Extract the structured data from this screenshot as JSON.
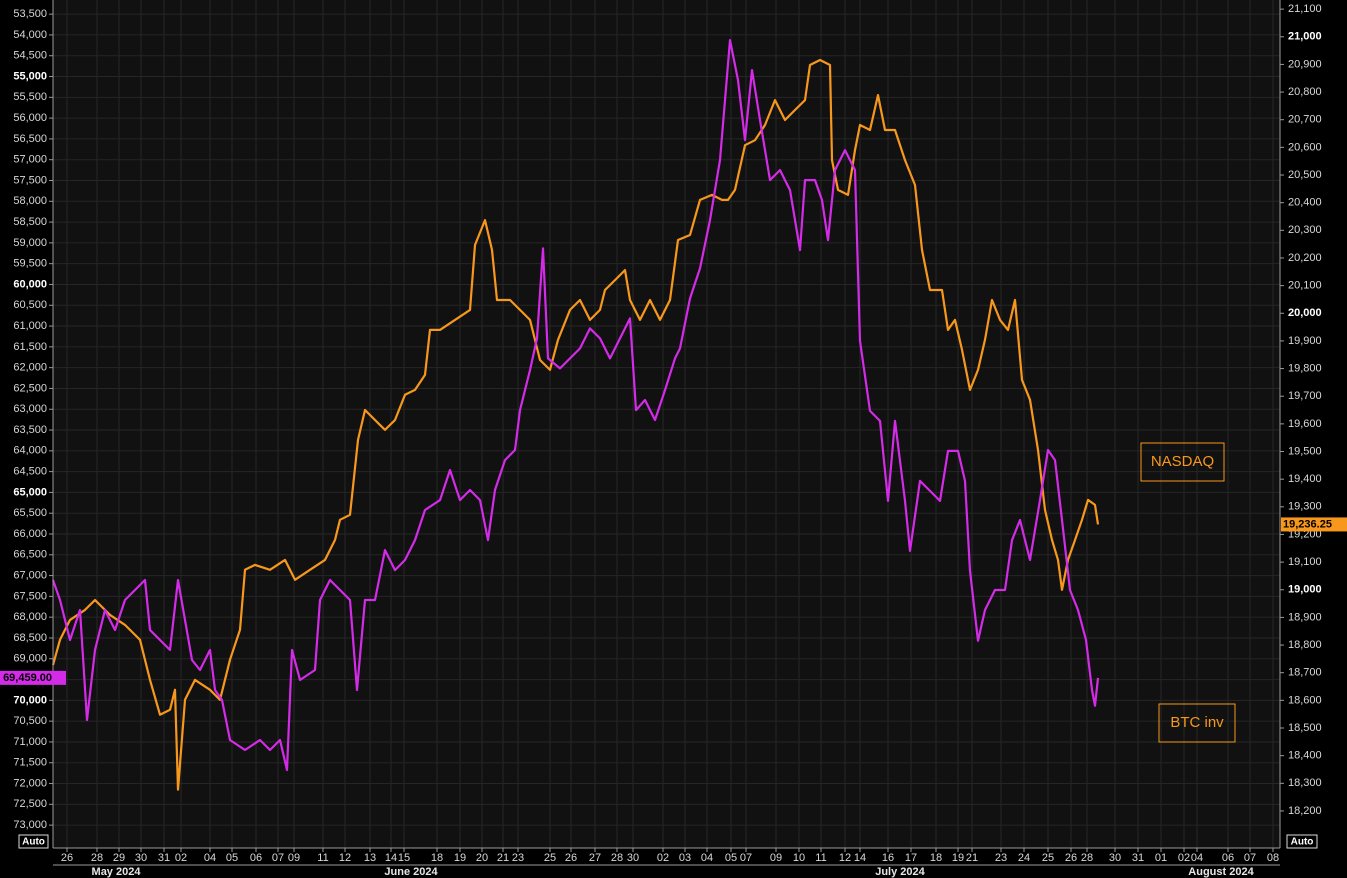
{
  "chart_data": {
    "type": "line",
    "xlim": [
      0,
      122.7
    ],
    "ylim": [
      73550,
      53160
    ],
    "y2lim": [
      18066,
      21133
    ],
    "grid": true,
    "xticks": [
      {
        "value": 1.4,
        "label": "26"
      },
      {
        "value": 4.4,
        "label": "28"
      },
      {
        "value": 6.6,
        "label": "29"
      },
      {
        "value": 8.8,
        "label": "30"
      },
      {
        "value": 11.1,
        "label": "31"
      },
      {
        "value": 12.8,
        "label": "02"
      },
      {
        "value": 15.7,
        "label": "04"
      },
      {
        "value": 17.9,
        "label": "05"
      },
      {
        "value": 20.3,
        "label": "06"
      },
      {
        "value": 22.5,
        "label": "07"
      },
      {
        "value": 24.1,
        "label": "09"
      },
      {
        "value": 27.0,
        "label": "11"
      },
      {
        "value": 29.2,
        "label": "12"
      },
      {
        "value": 31.7,
        "label": "13"
      },
      {
        "value": 33.8,
        "label": "14"
      },
      {
        "value": 35.1,
        "label": "15"
      },
      {
        "value": 38.4,
        "label": "18"
      },
      {
        "value": 40.7,
        "label": "19"
      },
      {
        "value": 42.9,
        "label": "20"
      },
      {
        "value": 45.0,
        "label": "21"
      },
      {
        "value": 46.5,
        "label": "23"
      },
      {
        "value": 49.7,
        "label": "25"
      },
      {
        "value": 51.8,
        "label": "26"
      },
      {
        "value": 54.2,
        "label": "27"
      },
      {
        "value": 56.4,
        "label": "28"
      },
      {
        "value": 58.0,
        "label": "30"
      },
      {
        "value": 61.0,
        "label": "02"
      },
      {
        "value": 63.2,
        "label": "03"
      },
      {
        "value": 65.4,
        "label": "04"
      },
      {
        "value": 67.8,
        "label": "05"
      },
      {
        "value": 69.3,
        "label": "07"
      },
      {
        "value": 72.3,
        "label": "09"
      },
      {
        "value": 74.6,
        "label": "10"
      },
      {
        "value": 76.8,
        "label": "11"
      },
      {
        "value": 79.2,
        "label": "12"
      },
      {
        "value": 80.7,
        "label": "14"
      },
      {
        "value": 83.5,
        "label": "16"
      },
      {
        "value": 85.8,
        "label": "17"
      },
      {
        "value": 88.3,
        "label": "18"
      },
      {
        "value": 90.5,
        "label": "19"
      },
      {
        "value": 91.9,
        "label": "21"
      },
      {
        "value": 94.8,
        "label": "23"
      },
      {
        "value": 97.1,
        "label": "24"
      },
      {
        "value": 99.5,
        "label": "25"
      },
      {
        "value": 101.8,
        "label": "26"
      },
      {
        "value": 103.4,
        "label": "28"
      },
      {
        "value": 106.2,
        "label": "30"
      },
      {
        "value": 108.5,
        "label": "31"
      },
      {
        "value": 110.8,
        "label": "01"
      },
      {
        "value": 113.1,
        "label": "02"
      },
      {
        "value": 114.4,
        "label": "04"
      },
      {
        "value": 117.5,
        "label": "06"
      },
      {
        "value": 119.7,
        "label": "07"
      },
      {
        "value": 122.0,
        "label": "08"
      }
    ],
    "month_ticks": [
      {
        "value": 6.3,
        "label": "May 2024"
      },
      {
        "value": 35.8,
        "label": "June 2024"
      },
      {
        "value": 84.7,
        "label": "July 2024"
      },
      {
        "value": 116.8,
        "label": "August 2024"
      }
    ],
    "yticks": [
      {
        "value": 53500,
        "label": "53,500"
      },
      {
        "value": 54000,
        "label": "54,000"
      },
      {
        "value": 54500,
        "label": "54,500"
      },
      {
        "value": 55000,
        "label": "55,000"
      },
      {
        "value": 55500,
        "label": "55,500"
      },
      {
        "value": 56000,
        "label": "56,000"
      },
      {
        "value": 56500,
        "label": "56,500"
      },
      {
        "value": 57000,
        "label": "57,000"
      },
      {
        "value": 57500,
        "label": "57,500"
      },
      {
        "value": 58000,
        "label": "58,000"
      },
      {
        "value": 58500,
        "label": "58,500"
      },
      {
        "value": 59000,
        "label": "59,000"
      },
      {
        "value": 59500,
        "label": "59,500"
      },
      {
        "value": 60000,
        "label": "60,000"
      },
      {
        "value": 60500,
        "label": "60,500"
      },
      {
        "value": 61000,
        "label": "61,000"
      },
      {
        "value": 61500,
        "label": "61,500"
      },
      {
        "value": 62000,
        "label": "62,000"
      },
      {
        "value": 62500,
        "label": "62,500"
      },
      {
        "value": 63000,
        "label": "63,000"
      },
      {
        "value": 63500,
        "label": "63,500"
      },
      {
        "value": 64000,
        "label": "64,000"
      },
      {
        "value": 64500,
        "label": "64,500"
      },
      {
        "value": 65000,
        "label": "65,000"
      },
      {
        "value": 65500,
        "label": "65,500"
      },
      {
        "value": 66000,
        "label": "66,000"
      },
      {
        "value": 66500,
        "label": "66,500"
      },
      {
        "value": 67000,
        "label": "67,000"
      },
      {
        "value": 67500,
        "label": "67,500"
      },
      {
        "value": 68000,
        "label": "68,000"
      },
      {
        "value": 68500,
        "label": "68,500"
      },
      {
        "value": 69000,
        "label": "69,000"
      },
      {
        "value": 69500,
        "label": "69,500"
      },
      {
        "value": 70000,
        "label": "70,000"
      },
      {
        "value": 70500,
        "label": "70,500"
      },
      {
        "value": 71000,
        "label": "71,000"
      },
      {
        "value": 71500,
        "label": "71,500"
      },
      {
        "value": 72000,
        "label": "72,000"
      },
      {
        "value": 72500,
        "label": "72,500"
      },
      {
        "value": 73000,
        "label": "73,000"
      }
    ],
    "y2ticks": [
      {
        "value": 21100,
        "label": "21,100"
      },
      {
        "value": 21000,
        "label": "21,000"
      },
      {
        "value": 20900,
        "label": "20,900"
      },
      {
        "value": 20800,
        "label": "20,800"
      },
      {
        "value": 20700,
        "label": "20,700"
      },
      {
        "value": 20600,
        "label": "20,600"
      },
      {
        "value": 20500,
        "label": "20,500"
      },
      {
        "value": 20400,
        "label": "20,400"
      },
      {
        "value": 20300,
        "label": "20,300"
      },
      {
        "value": 20200,
        "label": "20,200"
      },
      {
        "value": 20100,
        "label": "20,100"
      },
      {
        "value": 20000,
        "label": "20,000"
      },
      {
        "value": 19900,
        "label": "19,900"
      },
      {
        "value": 19800,
        "label": "19,800"
      },
      {
        "value": 19700,
        "label": "19,700"
      },
      {
        "value": 19600,
        "label": "19,600"
      },
      {
        "value": 19500,
        "label": "19,500"
      },
      {
        "value": 19400,
        "label": "19,400"
      },
      {
        "value": 19300,
        "label": "19,300"
      },
      {
        "value": 19200,
        "label": "19,200"
      },
      {
        "value": 19100,
        "label": "19,100"
      },
      {
        "value": 19000,
        "label": "19,000"
      },
      {
        "value": 18900,
        "label": "18,900"
      },
      {
        "value": 18800,
        "label": "18,800"
      },
      {
        "value": 18700,
        "label": "18,700"
      },
      {
        "value": 18600,
        "label": "18,600"
      },
      {
        "value": 18500,
        "label": "18,500"
      },
      {
        "value": 18400,
        "label": "18,400"
      },
      {
        "value": 18300,
        "label": "18,300"
      },
      {
        "value": 18200,
        "label": "18,200"
      }
    ],
    "series": [
      {
        "name": "NASDAQ",
        "color": "#f7981d",
        "axis": "y2",
        "last_label": "19,236.25",
        "x": [
          0,
          0.7,
          1.7,
          3.2,
          4.2,
          5.7,
          7.2,
          8.7,
          9.7,
          10.7,
          11.7,
          12.2,
          12.5,
          13.2,
          14.2,
          15.7,
          16.7,
          17.7,
          18.7,
          19.2,
          20.2,
          21.7,
          23.2,
          24.2,
          25.7,
          27.2,
          28.2,
          28.7,
          29.7,
          30.5,
          31.2,
          32.2,
          33.2,
          34.2,
          35.2,
          36.2,
          37.2,
          37.7,
          38.7,
          40.2,
          41.7,
          42.2,
          43.2,
          43.9,
          44.4,
          45.7,
          46.7,
          47.7,
          48.7,
          49.7,
          50.5,
          51.7,
          52.7,
          53.7,
          54.7,
          55.2,
          56.2,
          57.2,
          57.7,
          58.7,
          59.7,
          60.7,
          61.7,
          62.5,
          63.7,
          64.7,
          65.9,
          66.9,
          67.5,
          68.2,
          69.2,
          70.2,
          71.2,
          72.2,
          73.2,
          74.2,
          75.2,
          75.7,
          76.7,
          77.7,
          77.9,
          78.5,
          79.5,
          80.2,
          80.7,
          81.7,
          82.5,
          83.2,
          84.2,
          85.2,
          86.2,
          86.9,
          87.7,
          88.9,
          89.5,
          90.2,
          90.9,
          91.7,
          92.5,
          93.2,
          93.9,
          94.7,
          95.5,
          96.2,
          96.9,
          97.7,
          98.5,
          99.2,
          99.9,
          100.5,
          100.9,
          101.5,
          102.2,
          102.9,
          103.5,
          104.2,
          104.5
        ],
        "values": [
          18728,
          18819,
          18891,
          18927,
          18963,
          18909,
          18873,
          18819,
          18674,
          18548,
          18566,
          18638,
          18277,
          18602,
          18674,
          18638,
          18602,
          18747,
          18855,
          19072,
          19090,
          19072,
          19108,
          19036,
          19072,
          19108,
          19180,
          19253,
          19271,
          19542,
          19650,
          19614,
          19578,
          19614,
          19705,
          19723,
          19777,
          19940,
          19940,
          19976,
          20012,
          20247,
          20337,
          20229,
          20048,
          20048,
          20012,
          19976,
          19831,
          19795,
          19904,
          20012,
          20048,
          19976,
          20012,
          20084,
          20120,
          20156,
          20048,
          19976,
          20048,
          19976,
          20048,
          20265,
          20283,
          20410,
          20428,
          20410,
          20410,
          20446,
          20608,
          20626,
          20681,
          20771,
          20699,
          20735,
          20771,
          20898,
          20916,
          20898,
          20554,
          20446,
          20428,
          20590,
          20681,
          20663,
          20789,
          20663,
          20663,
          20554,
          20464,
          20229,
          20084,
          20084,
          19940,
          19976,
          19868,
          19723,
          19795,
          19904,
          20048,
          19976,
          19940,
          20048,
          19759,
          19687,
          19506,
          19289,
          19180,
          19108,
          19000,
          19108,
          19180,
          19253,
          19325,
          19307,
          19236.25
        ]
      },
      {
        "name": "BTC inv",
        "color": "#d42be8",
        "axis": "y",
        "last_label": "69,459.00",
        "x": [
          0,
          0.7,
          1.7,
          2.7,
          3.4,
          4.2,
          5.2,
          6.2,
          7.2,
          8.2,
          9.2,
          9.7,
          10.7,
          11.7,
          12.5,
          13.2,
          13.9,
          14.7,
          15.7,
          16.2,
          16.9,
          17.7,
          19.2,
          20.7,
          21.7,
          22.7,
          23.4,
          23.9,
          24.7,
          26.2,
          26.7,
          27.7,
          28.7,
          29.7,
          30.4,
          31.2,
          32.2,
          33.2,
          34.2,
          35.2,
          36.2,
          37.2,
          38.7,
          39.7,
          40.7,
          41.7,
          42.7,
          43.5,
          44.2,
          45.2,
          46.2,
          46.7,
          47.7,
          48.4,
          49.0,
          49.5,
          50.7,
          51.7,
          52.7,
          53.7,
          54.7,
          55.7,
          56.7,
          57.7,
          58.3,
          59.2,
          60.2,
          61.2,
          62.2,
          62.7,
          63.7,
          64.7,
          65.7,
          66.7,
          67.7,
          68.5,
          69.2,
          69.9,
          70.7,
          71.7,
          72.7,
          73.7,
          74.7,
          75.2,
          76.2,
          76.9,
          77.5,
          78.2,
          79.2,
          80.2,
          80.7,
          81.7,
          82.7,
          83.5,
          84.2,
          85.2,
          85.7,
          86.7,
          87.7,
          88.7,
          89.5,
          90.5,
          91.2,
          91.7,
          92.5,
          93.2,
          94.2,
          95.2,
          95.9,
          96.7,
          97.7,
          98.7,
          99.5,
          100.2,
          100.9,
          101.7,
          102.5,
          103.3,
          103.9,
          104.2,
          104.5
        ],
        "values": [
          67107,
          67587,
          68549,
          67828,
          70472,
          68789,
          67828,
          68308,
          67587,
          67347,
          67107,
          68308,
          68549,
          68789,
          67107,
          68068,
          69030,
          69270,
          68789,
          69751,
          69991,
          70953,
          71194,
          70953,
          71194,
          70953,
          71674,
          68789,
          69510,
          69270,
          67587,
          67107,
          67347,
          67587,
          69751,
          67587,
          67587,
          66386,
          66867,
          66626,
          66146,
          65424,
          65184,
          64462,
          65184,
          64943,
          65184,
          66146,
          64943,
          64222,
          63981,
          63020,
          62058,
          61296,
          59133,
          61778,
          62019,
          61778,
          61537,
          61056,
          61296,
          61778,
          61296,
          60816,
          63020,
          62779,
          63260,
          62539,
          61778,
          61537,
          60335,
          59614,
          58452,
          57010,
          54125,
          55086,
          56529,
          54846,
          56048,
          57490,
          57250,
          57731,
          59174,
          57490,
          57490,
          57971,
          58933,
          57250,
          56770,
          57250,
          61356,
          63039,
          63280,
          65203,
          63280,
          65203,
          66406,
          64722,
          64963,
          65203,
          64001,
          64001,
          64722,
          66886,
          68568,
          67828,
          67347,
          67347,
          66146,
          65664,
          66626,
          65184,
          63981,
          64222,
          65664,
          67347,
          67828,
          68549,
          69751,
          70132,
          69459
        ]
      }
    ]
  },
  "controls": {
    "left": "Auto",
    "right": "Auto"
  }
}
